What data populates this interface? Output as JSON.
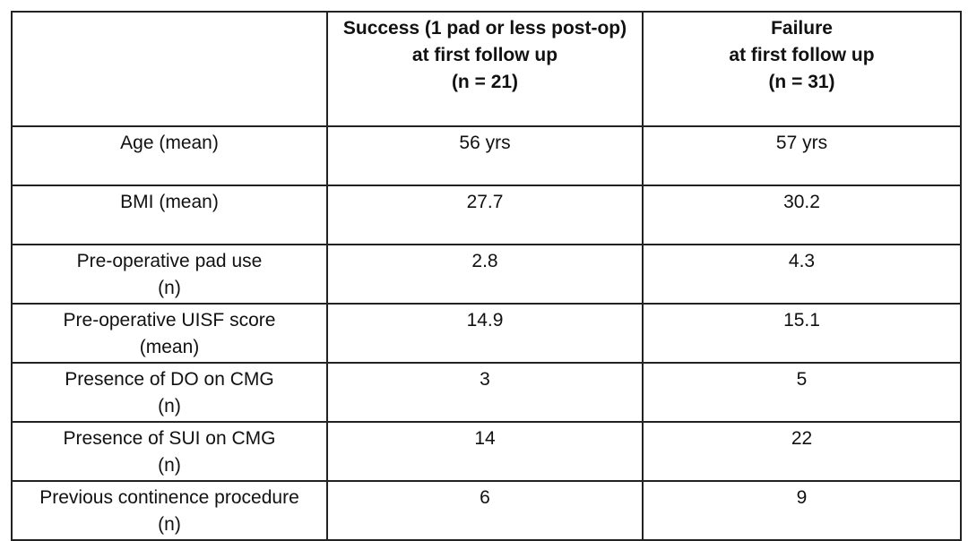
{
  "table": {
    "header": {
      "corner": "",
      "success": [
        "Success (1 pad or less post-op)",
        "at first follow up",
        "(n = 21)"
      ],
      "failure": [
        "Failure",
        "at first follow up",
        "(n = 31)"
      ]
    },
    "rows": [
      {
        "label": [
          "Age (mean)"
        ],
        "success": "56 yrs",
        "failure": "57 yrs"
      },
      {
        "label": [
          "BMI (mean)"
        ],
        "success": "27.7",
        "failure": "30.2"
      },
      {
        "label": [
          "Pre-operative pad use",
          "(n)"
        ],
        "success": "2.8",
        "failure": "4.3"
      },
      {
        "label": [
          "Pre-operative UISF score",
          "(mean)"
        ],
        "success": "14.9",
        "failure": "15.1"
      },
      {
        "label": [
          "Presence of DO on CMG",
          "(n)"
        ],
        "success": "3",
        "failure": "5"
      },
      {
        "label": [
          "Presence of SUI on CMG",
          "(n)"
        ],
        "success": "14",
        "failure": "22"
      },
      {
        "label": [
          "Previous continence procedure",
          "(n)"
        ],
        "success": "6",
        "failure": "9"
      }
    ]
  }
}
